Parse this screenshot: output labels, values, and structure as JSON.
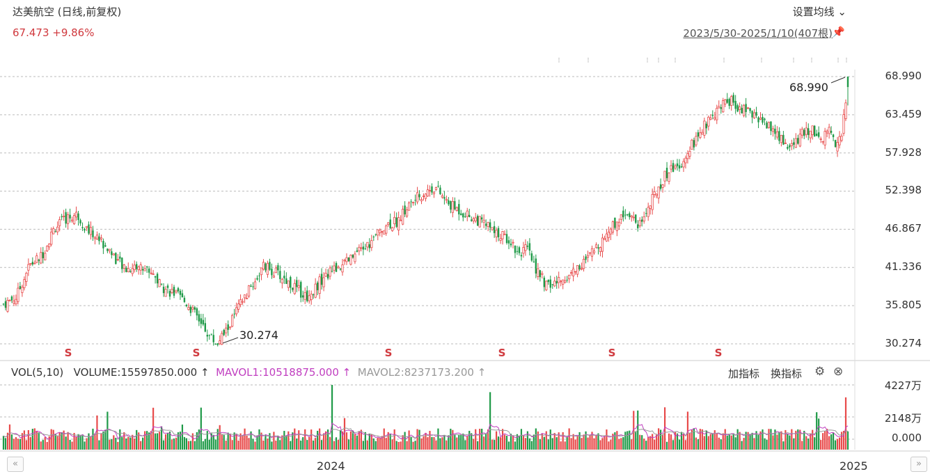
{
  "header": {
    "title": "达美航空 (日线,前复权)",
    "quote": "67.473 +9.86%",
    "ma_settings": "设置均线",
    "range": "2023/5/30-2025/1/10(407根)"
  },
  "price_axis": [
    "68.990",
    "63.459",
    "57.928",
    "52.398",
    "46.867",
    "41.336",
    "35.805",
    "30.274"
  ],
  "annotations": {
    "high": "68.990",
    "low": "30.274"
  },
  "volume_panel": {
    "vol_label": "VOL(5,10)",
    "volume": "VOLUME:15597850.000",
    "mavol1": "MAVOL1:10518875.000",
    "mavol2": "MAVOL2:8237173.200",
    "add_indicator": "加指标",
    "swap_indicator": "换指标",
    "axis": [
      "4227万",
      "2148万",
      "0.000"
    ]
  },
  "x_axis": {
    "year_2024": "2024",
    "year_2025": "2025"
  },
  "colors": {
    "up": "#e84a4a",
    "down": "#1f9a48",
    "ma1": "#c03fc0",
    "ma2": "#999999"
  },
  "chart_data": {
    "type": "candlestick",
    "title": "达美航空 (日线,前复权)",
    "period": "2023/5/30-2025/1/10",
    "bars": 407,
    "ylim": [
      30.274,
      68.99
    ],
    "close_path": [
      [
        0,
        36.0
      ],
      [
        10,
        37.0
      ],
      [
        20,
        41.5
      ],
      [
        30,
        43.0
      ],
      [
        40,
        47.0
      ],
      [
        50,
        48.5
      ],
      [
        58,
        49.0
      ],
      [
        65,
        47.0
      ],
      [
        75,
        45.5
      ],
      [
        85,
        43.5
      ],
      [
        95,
        41.0
      ],
      [
        105,
        41.5
      ],
      [
        115,
        41.0
      ],
      [
        125,
        38.5
      ],
      [
        135,
        37.5
      ],
      [
        145,
        36.0
      ],
      [
        155,
        33.5
      ],
      [
        162,
        31.5
      ],
      [
        168,
        30.3
      ],
      [
        175,
        32.0
      ],
      [
        185,
        35.5
      ],
      [
        195,
        38.5
      ],
      [
        205,
        41.5
      ],
      [
        215,
        40.5
      ],
      [
        222,
        39.5
      ],
      [
        232,
        38.0
      ],
      [
        240,
        37.0
      ],
      [
        250,
        39.5
      ],
      [
        260,
        41.0
      ],
      [
        270,
        42.0
      ],
      [
        280,
        43.5
      ],
      [
        290,
        45.0
      ],
      [
        300,
        47.5
      ],
      [
        310,
        48.0
      ],
      [
        320,
        50.5
      ],
      [
        330,
        52.0
      ],
      [
        340,
        53.0
      ],
      [
        350,
        50.5
      ],
      [
        360,
        49.5
      ],
      [
        370,
        48.5
      ],
      [
        380,
        47.5
      ],
      [
        390,
        46.0
      ],
      [
        398,
        45.5
      ],
      [
        405,
        43.5
      ],
      [
        412,
        44.0
      ],
      [
        420,
        41.0
      ],
      [
        428,
        38.5
      ],
      [
        440,
        39.5
      ],
      [
        450,
        41.0
      ],
      [
        460,
        42.5
      ],
      [
        470,
        45.0
      ],
      [
        478,
        47.0
      ],
      [
        485,
        48.5
      ],
      [
        492,
        49.5
      ],
      [
        500,
        47.5
      ],
      [
        508,
        50.0
      ],
      [
        516,
        53.0
      ],
      [
        524,
        55.5
      ],
      [
        532,
        56.0
      ],
      [
        540,
        58.5
      ],
      [
        548,
        60.5
      ],
      [
        556,
        63.0
      ],
      [
        564,
        64.5
      ],
      [
        572,
        65.5
      ],
      [
        580,
        64.5
      ],
      [
        588,
        63.5
      ],
      [
        596,
        63.0
      ],
      [
        604,
        61.5
      ],
      [
        612,
        60.0
      ],
      [
        620,
        58.5
      ],
      [
        628,
        60.5
      ],
      [
        636,
        61.5
      ],
      [
        645,
        60.0
      ],
      [
        650,
        61.5
      ],
      [
        655,
        59.5
      ],
      [
        660,
        60.5
      ],
      [
        665,
        67.5
      ]
    ],
    "volume_axis": [
      "4227万",
      "2148万",
      "0.000"
    ],
    "series": [
      {
        "name": "MAVOL1",
        "value": "10518875.000"
      },
      {
        "name": "MAVOL2",
        "value": "8237173.200"
      }
    ],
    "high_label": 68.99,
    "low_label": 30.274
  }
}
